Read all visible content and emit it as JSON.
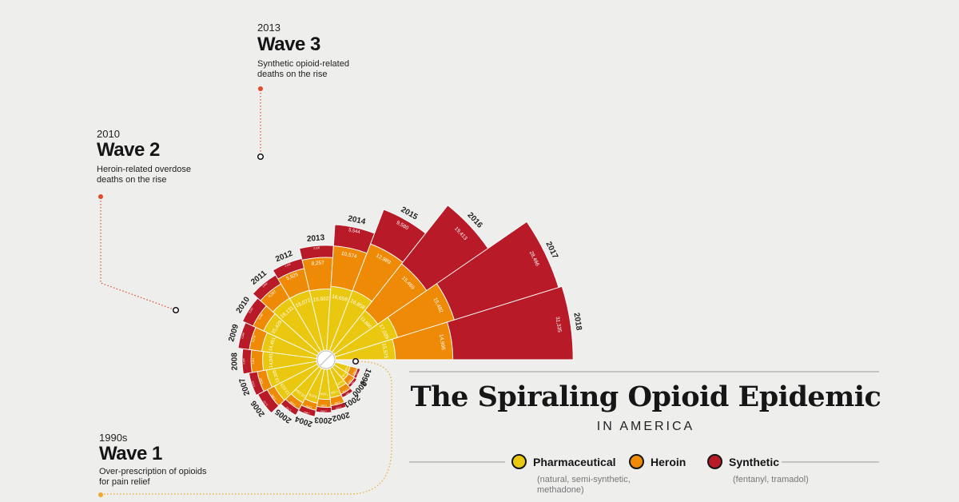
{
  "chart_data": {
    "type": "radial-stacked-bar",
    "title": "The Spiraling Opioid Epidemic",
    "subtitle": "IN AMERICA",
    "series": [
      {
        "name": "Pharmaceutical",
        "note": "(natural, semi-synthetic, methadone)",
        "color": "#eac80f"
      },
      {
        "name": "Heroin",
        "note": "",
        "color": "#ee8a05"
      },
      {
        "name": "Synthetic",
        "note": "(fentanyl, tramadol)",
        "color": "#b81a28"
      }
    ],
    "years": [
      {
        "year": "1999",
        "pharmaceutical": 4030,
        "pharmaceutical_label": "4,030",
        "heroin": 1960,
        "heroin_label": "1,960",
        "synthetic": 730,
        "synthetic_label": "730"
      },
      {
        "year": "2000",
        "pharmaceutical": 4400,
        "pharmaceutical_label": "4,400",
        "heroin": 1842,
        "heroin_label": "1,842",
        "synthetic": 782,
        "synthetic_label": "782"
      },
      {
        "year": "2001",
        "pharmaceutical": 5528,
        "pharmaceutical_label": "5,528",
        "heroin": 1779,
        "heroin_label": "1,779",
        "synthetic": 957,
        "synthetic_label": "957"
      },
      {
        "year": "2002",
        "pharmaceutical": 7456,
        "pharmaceutical_label": "7,456",
        "heroin": 2089,
        "heroin_label": "2,089",
        "synthetic": 1295,
        "synthetic_label": "1,295"
      },
      {
        "year": "2003",
        "pharmaceutical": 7834,
        "pharmaceutical_label": "7,834",
        "heroin": 2080,
        "heroin_label": "2,080",
        "synthetic": 1400,
        "synthetic_label": "1,400"
      },
      {
        "year": "2004",
        "pharmaceutical": 9076,
        "pharmaceutical_label": "9,076",
        "heroin": 1878,
        "heroin_label": "1,878",
        "synthetic": 1664,
        "synthetic_label": "1,664"
      },
      {
        "year": "2005",
        "pharmaceutical": 10234,
        "pharmaceutical_label": "10,234",
        "heroin": 2009,
        "heroin_label": "2,009",
        "synthetic": 1742,
        "synthetic_label": "1,742"
      },
      {
        "year": "2006",
        "pharmaceutical": 12623,
        "pharmaceutical_label": "12,623",
        "heroin": 2088,
        "heroin_label": "2,088",
        "synthetic": 2707,
        "synthetic_label": "2,707"
      },
      {
        "year": "2007",
        "pharmaceutical": 13305,
        "pharmaceutical_label": "13,305",
        "heroin": 2399,
        "heroin_label": "2,399",
        "synthetic": 2213,
        "synthetic_label": "2,213"
      },
      {
        "year": "2008",
        "pharmaceutical": 14043,
        "pharmaceutical_label": "14,043",
        "heroin": 3041,
        "heroin_label": "3,041",
        "synthetic": 2306,
        "synthetic_label": "2,306"
      },
      {
        "year": "2009",
        "pharmaceutical": 14401,
        "pharmaceutical_label": "14,401",
        "heroin": 3278,
        "heroin_label": "3,278",
        "synthetic": 2946,
        "synthetic_label": "2,946"
      },
      {
        "year": "2010",
        "pharmaceutical": 15429,
        "pharmaceutical_label": "15,429",
        "heroin": 3036,
        "heroin_label": "3,036",
        "synthetic": 3007,
        "synthetic_label": "3,007"
      },
      {
        "year": "2011",
        "pharmaceutical": 16131,
        "pharmaceutical_label": "16,131",
        "heroin": 4397,
        "heroin_label": "4,397",
        "synthetic": 2666,
        "synthetic_label": "2,666"
      },
      {
        "year": "2012",
        "pharmaceutical": 16072,
        "pharmaceutical_label": "16,072",
        "heroin": 5925,
        "heroin_label": "5,925",
        "synthetic": 2628,
        "synthetic_label": "2,628"
      },
      {
        "year": "2013",
        "pharmaceutical": 15932,
        "pharmaceutical_label": "15,932",
        "heroin": 8257,
        "heroin_label": "8,257",
        "synthetic": 3105,
        "synthetic_label": "3,105"
      },
      {
        "year": "2014",
        "pharmaceutical": 16659,
        "pharmaceutical_label": "16,659",
        "heroin": 10574,
        "heroin_label": "10,574",
        "synthetic": 5544,
        "synthetic_label": "5,544"
      },
      {
        "year": "2015",
        "pharmaceutical": 16858,
        "pharmaceutical_label": "16,858",
        "heroin": 12989,
        "heroin_label": "12,989",
        "synthetic": 9580,
        "synthetic_label": "9,580"
      },
      {
        "year": "2016",
        "pharmaceutical": 13860,
        "pharmaceutical_label": "13,860",
        "heroin": 15469,
        "heroin_label": "15,469",
        "synthetic": 19413,
        "synthetic_label": "19,413"
      },
      {
        "year": "2017",
        "pharmaceutical": 17029,
        "pharmaceutical_label": "17,029",
        "heroin": 15482,
        "heroin_label": "15,482",
        "synthetic": 28466,
        "synthetic_label": "28,466"
      },
      {
        "year": "2018",
        "pharmaceutical": 15575,
        "pharmaceutical_label": "15,575",
        "heroin": 14996,
        "heroin_label": "14,996",
        "synthetic": 31335,
        "synthetic_label": "31,335"
      }
    ]
  },
  "waves": [
    {
      "year": "1990s",
      "title": "Wave 1",
      "description": "Over-prescription of opioids for pain relief"
    },
    {
      "year": "2010",
      "title": "Wave 2",
      "description": "Heroin-related overdose deaths on the rise"
    },
    {
      "year": "2013",
      "title": "Wave 3",
      "description": "Synthetic opioid-related deaths on the rise"
    }
  ],
  "colors": {
    "background": "#eeeeed",
    "pharmaceutical": "#eac80f",
    "heroin": "#ee8a05",
    "synthetic": "#b81a28",
    "callout": "#e4492a",
    "wave1_line": "#f0a82a"
  }
}
